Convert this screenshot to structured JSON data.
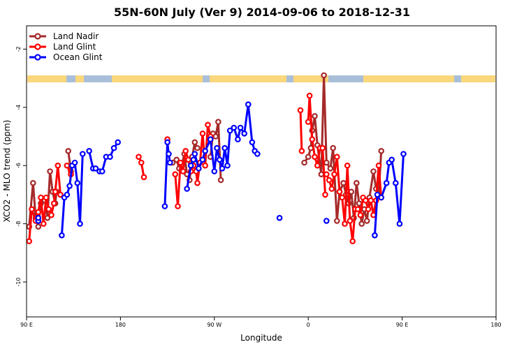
{
  "chart_data": {
    "type": "line",
    "title": "55N-60N July (Ver 9)   2014-09-06 to 2018-12-31",
    "xlabel": "Longitude",
    "ylabel": "XCO2 - MLO trend (ppm)",
    "xlim": [
      90,
      450
    ],
    "ylim": [
      -11.2,
      -1.2
    ],
    "x_ticks": [
      {
        "value": 90,
        "label": "90 E"
      },
      {
        "value": 162,
        "label": "180"
      },
      {
        "value": 234,
        "label": "90 W"
      },
      {
        "value": 306,
        "label": "0"
      },
      {
        "value": 378,
        "label": "90 E"
      },
      {
        "value": 450,
        "label": "180"
      }
    ],
    "y_ticks": [
      -10,
      -8,
      -6,
      -4,
      -2
    ],
    "grid": false,
    "legend_position": "top-left",
    "series": [
      {
        "name": "Land Nadir",
        "color": "#A52A2A",
        "segments": [
          [
            [
              92,
              -8.1
            ],
            [
              95,
              -6.6
            ],
            [
              97,
              -7.8
            ],
            [
              99,
              -8.1
            ],
            [
              101,
              -7.3
            ],
            [
              104,
              -7.2
            ],
            [
              106,
              -7.8
            ],
            [
              108,
              -6.2
            ],
            [
              110,
              -6.9
            ],
            [
              112,
              -7.3
            ],
            [
              113,
              -6.9
            ]
          ],
          [
            [
              122,
              -5.5
            ],
            [
              124,
              -6.2
            ]
          ],
          [
            [
              202,
              -5.9
            ],
            [
              205,
              -5.8
            ],
            [
              207,
              -6.1
            ],
            [
              209,
              -6.0
            ],
            [
              211,
              -5.6
            ],
            [
              213,
              -6.3
            ],
            [
              215,
              -6.5
            ],
            [
              217,
              -5.7
            ],
            [
              219,
              -5.2
            ],
            [
              221,
              -5.4
            ]
          ],
          [
            [
              231,
              -5.7
            ],
            [
              233,
              -4.9
            ],
            [
              235,
              -5.0
            ],
            [
              237,
              -4.5
            ],
            [
              239,
              -6.5
            ]
          ],
          [
            [
              303,
              -5.9
            ],
            [
              306,
              -5.7
            ],
            [
              308,
              -5.4
            ],
            [
              309,
              -4.8
            ],
            [
              311,
              -4.3
            ],
            [
              313,
              -5.3
            ],
            [
              316,
              -6.3
            ],
            [
              318,
              -2.9
            ],
            [
              320,
              -5.9
            ],
            [
              323,
              -6.1
            ],
            [
              325,
              -5.4
            ],
            [
              328,
              -7.9
            ],
            [
              330,
              -6.9
            ],
            [
              333,
              -6.6
            ],
            [
              335,
              -7.0
            ],
            [
              337,
              -7.3
            ],
            [
              339,
              -6.9
            ],
            [
              341,
              -7.8
            ],
            [
              343,
              -6.6
            ],
            [
              345,
              -7.3
            ],
            [
              347,
              -8.0
            ],
            [
              349,
              -7.5
            ],
            [
              351,
              -7.9
            ],
            [
              353,
              -7.1
            ],
            [
              356,
              -6.2
            ],
            [
              358,
              -6.8
            ],
            [
              360,
              -7.0
            ],
            [
              362,
              -5.5
            ]
          ]
        ]
      },
      {
        "name": "Land Glint",
        "color": "#FF0000",
        "segments": [
          [
            [
              92,
              -8.6
            ],
            [
              94,
              -7.5
            ],
            [
              97,
              -7.9
            ],
            [
              99,
              -7.6
            ],
            [
              101,
              -7.1
            ],
            [
              103,
              -8.0
            ],
            [
              105,
              -7.1
            ],
            [
              107,
              -7.5
            ],
            [
              109,
              -7.7
            ],
            [
              111,
              -7.3
            ],
            [
              112,
              -6.9
            ],
            [
              114,
              -6.0
            ],
            [
              116,
              -7.0
            ]
          ],
          [
            [
              121,
              -6.0
            ],
            [
              124,
              -6.3
            ]
          ],
          [
            [
              176,
              -5.7
            ],
            [
              178,
              -5.9
            ],
            [
              180,
              -6.4
            ]
          ],
          [
            [
              198,
              -5.1
            ]
          ],
          [
            [
              204,
              -6.3
            ],
            [
              206,
              -7.4
            ],
            [
              208,
              -5.9
            ],
            [
              210,
              -6.2
            ],
            [
              212,
              -5.5
            ],
            [
              214,
              -5.8
            ],
            [
              216,
              -6.2
            ],
            [
              218,
              -6.0
            ],
            [
              220,
              -6.2
            ],
            [
              221,
              -6.6
            ],
            [
              223,
              -5.9
            ],
            [
              225,
              -4.9
            ],
            [
              227,
              -6.0
            ],
            [
              229,
              -4.6
            ],
            [
              231,
              -5.0
            ]
          ],
          [
            [
              300,
              -4.1
            ],
            [
              301,
              -5.5
            ]
          ],
          [
            [
              306,
              -4.5
            ],
            [
              307,
              -3.6
            ],
            [
              309,
              -5.1
            ],
            [
              311,
              -5.7
            ],
            [
              313,
              -6.0
            ],
            [
              315,
              -5.4
            ],
            [
              317,
              -5.4
            ],
            [
              319,
              -7.0
            ]
          ],
          [
            [
              320,
              -6.3
            ],
            [
              322,
              -6.5
            ],
            [
              324,
              -6.8
            ],
            [
              326,
              -6.3
            ],
            [
              328,
              -5.7
            ],
            [
              330,
              -6.9
            ],
            [
              332,
              -7.1
            ],
            [
              334,
              -8.0
            ],
            [
              336,
              -6.0
            ],
            [
              338,
              -7.9
            ],
            [
              340,
              -8.6
            ],
            [
              342,
              -7.5
            ],
            [
              344,
              -7.5
            ],
            [
              346,
              -7.7
            ],
            [
              348,
              -7.1
            ],
            [
              350,
              -7.2
            ],
            [
              352,
              -7.5
            ],
            [
              354,
              -7.2
            ],
            [
              356,
              -7.7
            ],
            [
              358,
              -7.2
            ],
            [
              360,
              -6.0
            ],
            [
              362,
              -7.1
            ]
          ]
        ]
      },
      {
        "name": "Ocean Glint",
        "color": "#0000FF",
        "segments": [
          [
            [
              99,
              -7.9
            ],
            [
              99,
              -7.8
            ]
          ],
          [
            [
              117,
              -8.4
            ],
            [
              119,
              -7.1
            ],
            [
              121,
              -7.0
            ],
            [
              123,
              -6.7
            ],
            [
              125,
              -6.0
            ],
            [
              127,
              -5.9
            ],
            [
              129,
              -6.6
            ],
            [
              131,
              -8.0
            ],
            [
              133,
              -5.6
            ]
          ],
          [
            [
              138,
              -5.5
            ],
            [
              141,
              -6.1
            ],
            [
              143,
              -6.1
            ],
            [
              146,
              -6.2
            ],
            [
              148,
              -6.2
            ],
            [
              151,
              -5.7
            ],
            [
              154,
              -5.7
            ],
            [
              157,
              -5.4
            ],
            [
              160,
              -5.2
            ]
          ],
          [
            [
              196,
              -7.4
            ],
            [
              198,
              -5.2
            ],
            [
              199,
              -5.6
            ],
            [
              200,
              -5.9
            ]
          ],
          [
            [
              213,
              -6.8
            ],
            [
              216,
              -6.0
            ],
            [
              218,
              -5.8
            ],
            [
              219,
              -5.6
            ],
            [
              222,
              -6.1
            ],
            [
              225,
              -5.8
            ],
            [
              227,
              -5.5
            ],
            [
              231,
              -5.1
            ],
            [
              234,
              -6.2
            ],
            [
              236,
              -5.4
            ],
            [
              238,
              -5.8
            ],
            [
              240,
              -6.1
            ],
            [
              242,
              -5.4
            ],
            [
              244,
              -6.0
            ],
            [
              246,
              -4.8
            ],
            [
              249,
              -4.7
            ],
            [
              252,
              -5.1
            ],
            [
              254,
              -4.7
            ],
            [
              257,
              -4.9
            ],
            [
              260,
              -3.9
            ],
            [
              263,
              -5.2
            ],
            [
              265,
              -5.5
            ],
            [
              267,
              -5.6
            ]
          ],
          [
            [
              284,
              -7.8
            ]
          ],
          [
            [
              320,
              -7.9
            ]
          ],
          [
            [
              357,
              -8.4
            ],
            [
              359,
              -7.0
            ],
            [
              362,
              -7.1
            ],
            [
              366,
              -6.6
            ],
            [
              368,
              -5.9
            ],
            [
              370,
              -5.8
            ],
            [
              373,
              -6.6
            ],
            [
              376,
              -8.0
            ],
            [
              379,
              -5.6
            ]
          ]
        ]
      }
    ]
  }
}
